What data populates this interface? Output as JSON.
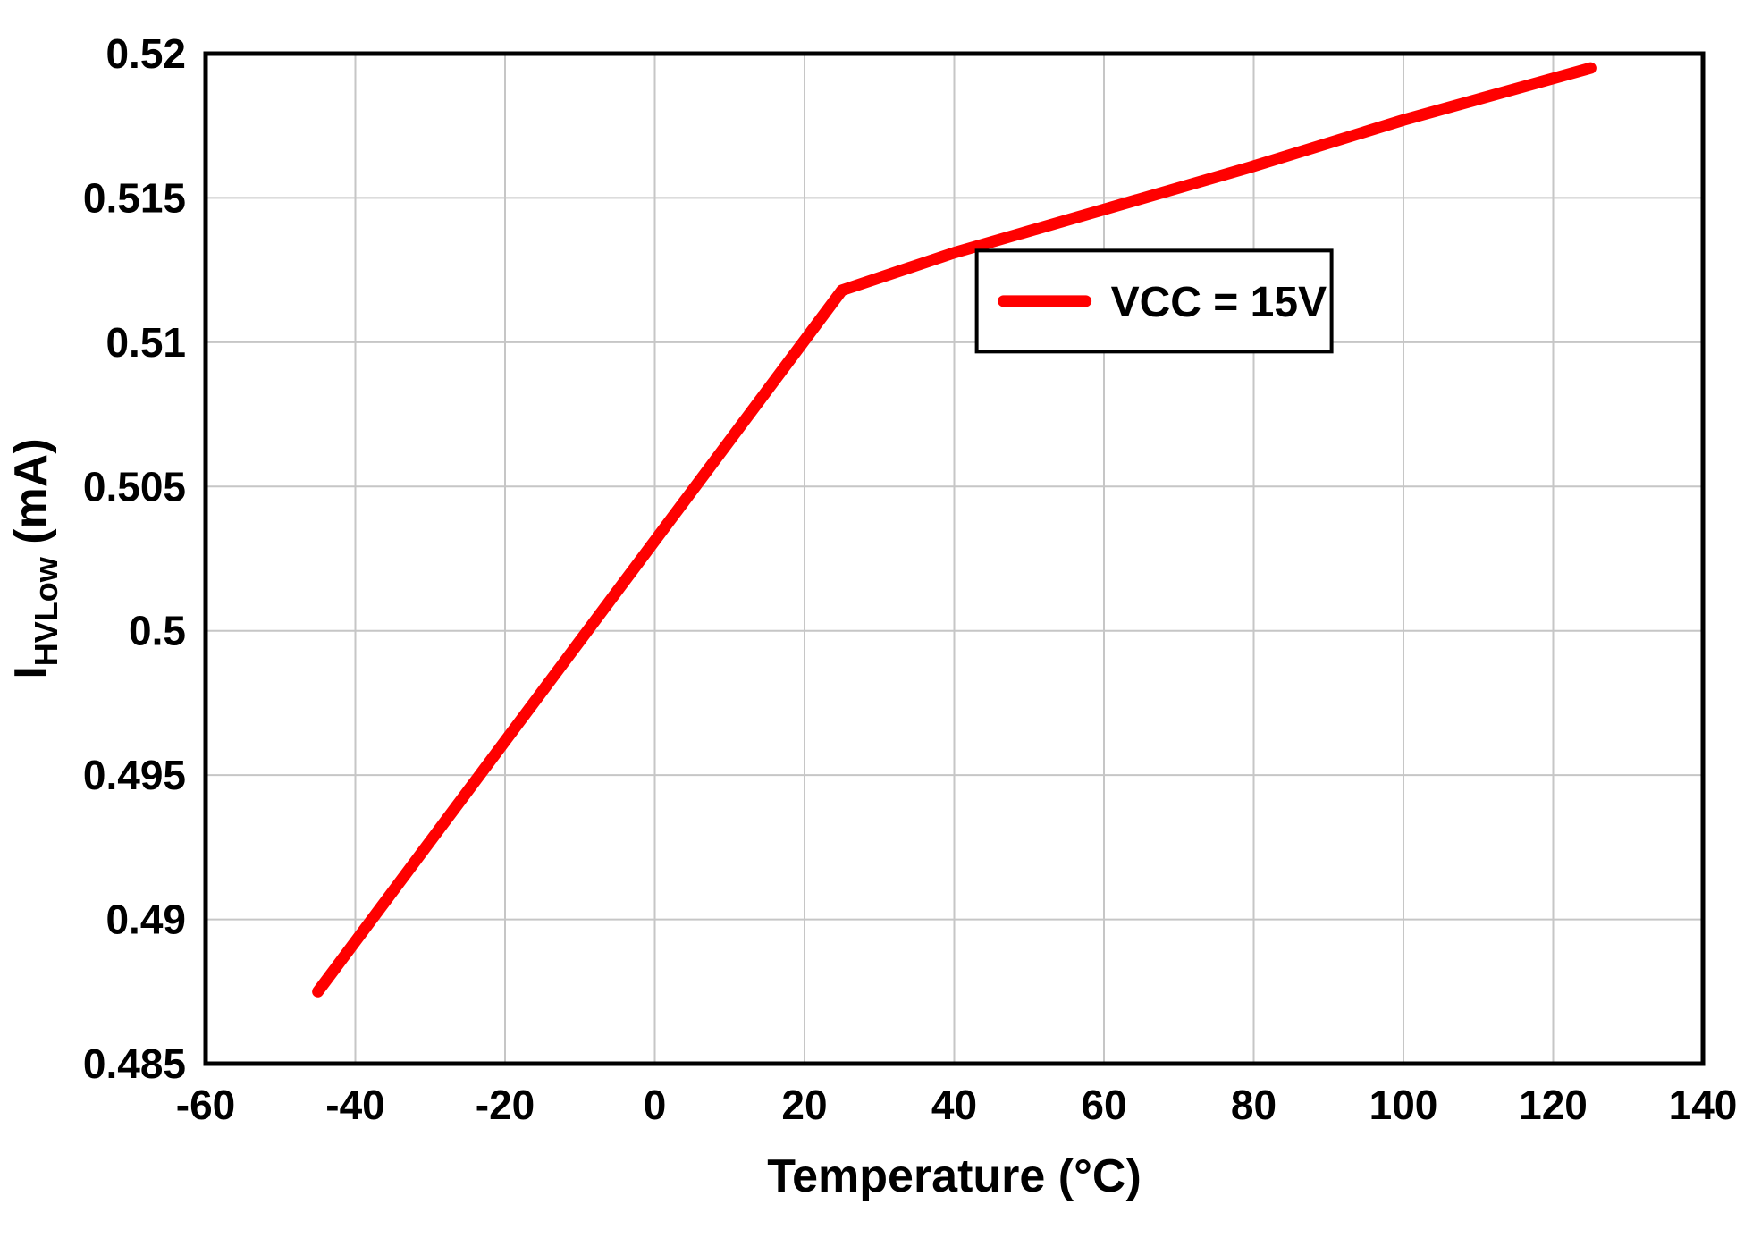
{
  "chart_data": {
    "type": "line",
    "title": "",
    "xlabel": "Temperature (°C)",
    "ylabel": "I_HVLow (mA)",
    "ylabel_parts": {
      "pre": "I",
      "sub": "HVLow",
      "post": " (mA)"
    },
    "xlim": [
      -60,
      140
    ],
    "ylim": [
      0.485,
      0.52
    ],
    "x_ticks": [
      -60,
      -40,
      -20,
      0,
      20,
      40,
      60,
      80,
      100,
      120,
      140
    ],
    "x_tick_labels": [
      "-60",
      "-40",
      "-20",
      "0",
      "20",
      "40",
      "60",
      "80",
      "100",
      "120",
      "140"
    ],
    "y_ticks": [
      0.485,
      0.49,
      0.495,
      0.5,
      0.505,
      0.51,
      0.515,
      0.52
    ],
    "y_tick_labels": [
      "0.485",
      "0.49",
      "0.495",
      "0.5",
      "0.505",
      "0.51",
      "0.515",
      "0.52"
    ],
    "grid": true,
    "legend": {
      "position": "inside-upper-right",
      "entries": [
        {
          "label": "VCC = 15V",
          "color": "#ff0000"
        }
      ]
    },
    "series": [
      {
        "name": "VCC = 15V",
        "color": "#ff0000",
        "points": [
          [
            -45,
            0.4875
          ],
          [
            25,
            0.5118
          ],
          [
            40,
            0.5131
          ],
          [
            60,
            0.5146
          ],
          [
            80,
            0.5161
          ],
          [
            100,
            0.5177
          ],
          [
            125,
            0.5195
          ]
        ]
      }
    ],
    "colors": {
      "grid": "#c6c6c6",
      "axis": "#000000",
      "text": "#000000",
      "background": "#ffffff"
    }
  }
}
